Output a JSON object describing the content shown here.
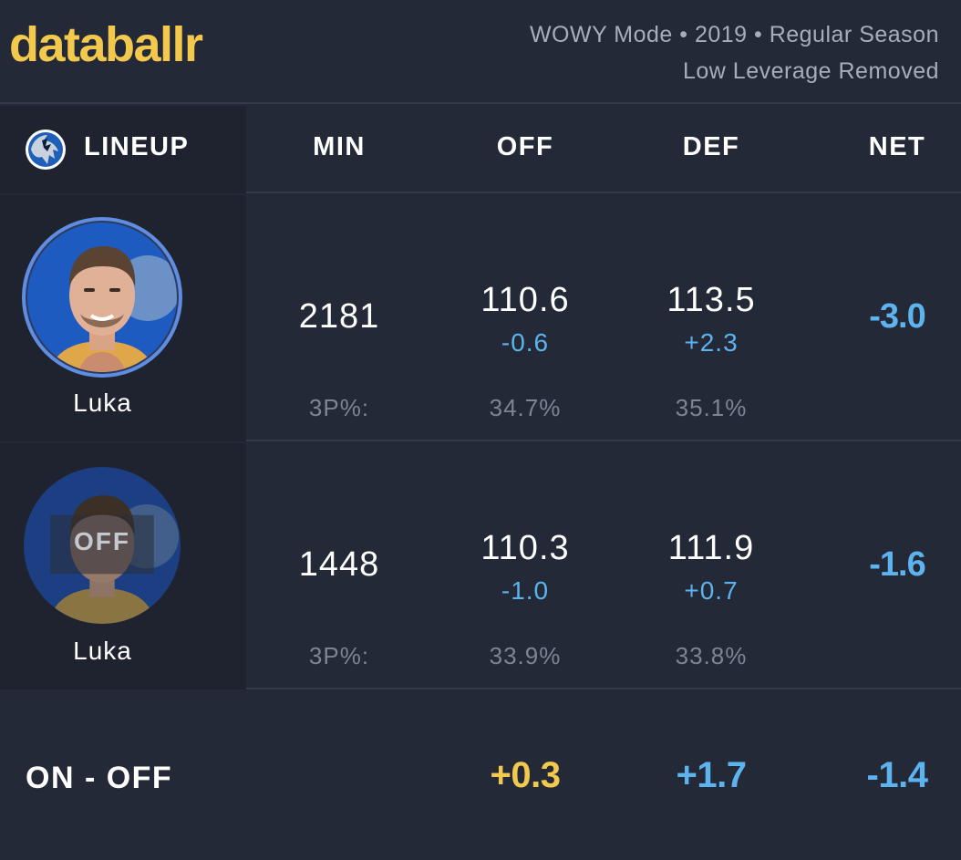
{
  "header": {
    "brand": "databallr",
    "meta_line1": "WOWY Mode • 2019 • Regular Season",
    "meta_line2": "Low Leverage Removed"
  },
  "columns": {
    "lineup": "LINEUP",
    "min": "MIN",
    "off": "OFF",
    "def": "DEF",
    "net": "NET"
  },
  "rows": [
    {
      "player": "Luka",
      "status": "on",
      "min": "2181",
      "off": "110.6",
      "off_delta": "-0.6",
      "def": "113.5",
      "def_delta": "+2.3",
      "net": "-3.0",
      "threept_label": "3P%:",
      "off_3p": "34.7%",
      "def_3p": "35.1%"
    },
    {
      "player": "Luka",
      "status": "off",
      "off_badge": "OFF",
      "min": "1448",
      "off": "110.3",
      "off_delta": "-1.0",
      "def": "111.9",
      "def_delta": "+0.7",
      "net": "-1.6",
      "threept_label": "3P%:",
      "off_3p": "33.9%",
      "def_3p": "33.8%"
    }
  ],
  "on_off": {
    "label": "ON - OFF",
    "off": "+0.3",
    "def": "+1.7",
    "net": "-1.4"
  },
  "colors": {
    "background": "#242937",
    "brand": "#f2c94c",
    "positive_off": "#f2c94c",
    "accent_blue": "#5db3ee",
    "muted": "#7d8494"
  }
}
